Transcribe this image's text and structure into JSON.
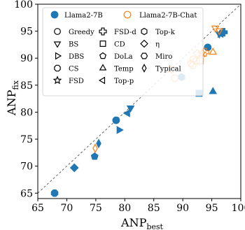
{
  "chart_data": {
    "type": "scatter",
    "xlabel": "ANP",
    "xlabel_sub": "best",
    "ylabel": "ANP",
    "ylabel_sub": "fix",
    "xlim": [
      65,
      100
    ],
    "ylim": [
      64,
      100
    ],
    "xticks": [
      65,
      70,
      75,
      80,
      85,
      90,
      95,
      100
    ],
    "yticks": [
      65,
      70,
      75,
      80,
      85,
      90,
      95,
      100
    ],
    "grid": false,
    "reference_line": "y = x (dashed)",
    "legend_position": "top",
    "series": [
      {
        "name": "Llama2-7B",
        "color": "#1f77b4",
        "style": "filled",
        "points": [
          {
            "method": "Greedy",
            "x": 78.5,
            "y": 78.5
          },
          {
            "method": "Greedy",
            "x": 94.3,
            "y": 92.0
          },
          {
            "method": "BS",
            "x": 81.0,
            "y": 80.8
          },
          {
            "method": "BS",
            "x": 96.3,
            "y": 94.5
          },
          {
            "method": "DBS",
            "x": 79.0,
            "y": 76.7
          },
          {
            "method": "CS",
            "x": 67.9,
            "y": 65.0
          },
          {
            "method": "FSD",
            "x": 96.5,
            "y": 94.5
          },
          {
            "method": "FSD-d",
            "x": 97.0,
            "y": 94.8
          },
          {
            "method": "CD",
            "x": 92.8,
            "y": 83.5
          },
          {
            "method": "DoLa",
            "x": 74.8,
            "y": 71.8
          },
          {
            "method": "Temp",
            "x": 95.2,
            "y": 83.8
          },
          {
            "method": "Top-p",
            "x": 80.5,
            "y": 79.8
          },
          {
            "method": "Top-k",
            "x": 89.8,
            "y": 86.5
          },
          {
            "method": "η",
            "x": 71.3,
            "y": 69.7
          },
          {
            "method": "Typical",
            "x": 75.5,
            "y": 74.2
          }
        ]
      },
      {
        "name": "Llama2-7B-Chat",
        "color": "#ff7f0e",
        "style": "hollow",
        "points": [
          {
            "method": "Greedy",
            "x": 88.0,
            "y": 87.9
          },
          {
            "method": "BS",
            "x": 95.6,
            "y": 95.6
          },
          {
            "method": "BS",
            "x": 96.3,
            "y": 95.1
          },
          {
            "method": "CS",
            "x": 88.6,
            "y": 86.3
          },
          {
            "method": "CS",
            "x": 92.3,
            "y": 89.5
          },
          {
            "method": "FSD",
            "x": 93.3,
            "y": 90.9
          },
          {
            "method": "FSD-d",
            "x": 93.8,
            "y": 91.1
          },
          {
            "method": "CD",
            "x": 93.0,
            "y": 89.5
          },
          {
            "method": "DoLa",
            "x": 91.4,
            "y": 89.0
          },
          {
            "method": "Temp",
            "x": 95.2,
            "y": 91.1
          },
          {
            "method": "Top-k",
            "x": 91.8,
            "y": 89.8
          },
          {
            "method": "η",
            "x": 92.5,
            "y": 90.9
          },
          {
            "method": "Miro",
            "x": 91.7,
            "y": 88.7
          },
          {
            "method": "Typical",
            "x": 74.9,
            "y": 73.3
          }
        ]
      }
    ],
    "legend": {
      "series_entries": [
        {
          "label": "Llama2-7B",
          "color": "#1f77b4",
          "style": "filled"
        },
        {
          "label": "Llama2-7B-Chat",
          "color": "#ff7f0e",
          "style": "hollow"
        }
      ],
      "marker_entries": [
        {
          "label": "Greedy",
          "marker": "circle"
        },
        {
          "label": "BS",
          "marker": "triangle-down"
        },
        {
          "label": "DBS",
          "marker": "triangle-right"
        },
        {
          "label": "CS",
          "marker": "octagon"
        },
        {
          "label": "FSD",
          "marker": "star"
        },
        {
          "label": "FSD-d",
          "marker": "plus"
        },
        {
          "label": "CD",
          "marker": "square"
        },
        {
          "label": "DoLa",
          "marker": "pentagon"
        },
        {
          "label": "Temp",
          "marker": "triangle-up"
        },
        {
          "label": "Top-p",
          "marker": "triangle-left"
        },
        {
          "label": "Top-k",
          "marker": "hexagon"
        },
        {
          "label": "η",
          "marker": "diamond"
        },
        {
          "label": "Miro",
          "marker": "hexagon2"
        },
        {
          "label": "Typical",
          "marker": "thin-diamond"
        }
      ]
    }
  }
}
